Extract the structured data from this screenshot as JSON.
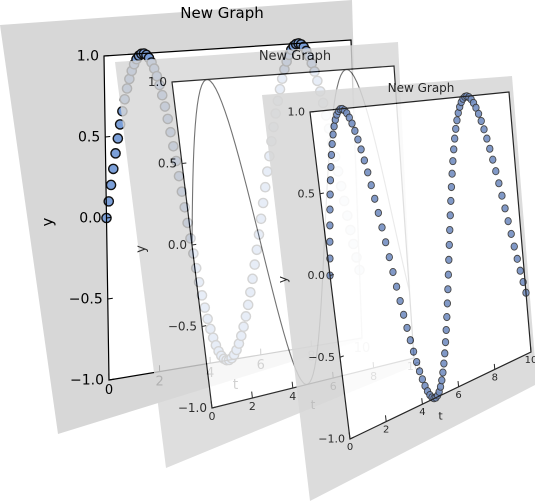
{
  "chart_data": [
    {
      "type": "scatter",
      "title": "New Graph",
      "xlabel": "t",
      "ylabel": "y",
      "function": "sin",
      "x_range": [
        0,
        10
      ],
      "ylim": [
        -1.0,
        1.0
      ],
      "xticks": [
        "0",
        "2",
        "4",
        "6",
        "8",
        "10"
      ],
      "yticks": [
        "−1.0",
        "−0.5",
        "0.0",
        "0.5",
        "1.0"
      ],
      "marker_color": "#7b9fd8",
      "num_points": 100
    },
    {
      "type": "line",
      "title": "New Graph",
      "xlabel": "t",
      "ylabel": "y",
      "function": "sin",
      "x_range": [
        0,
        10
      ],
      "ylim": [
        -1.0,
        1.0
      ],
      "xticks": [
        "0",
        "2",
        "4",
        "6",
        "8",
        "10"
      ],
      "yticks": [
        "−1.0",
        "−0.5",
        "0.0",
        "0.5",
        "1.0"
      ],
      "line_color": "#555555",
      "num_points": 100
    },
    {
      "type": "scatter",
      "title": "New Graph",
      "xlabel": "t",
      "ylabel": "y",
      "function": "sin",
      "x_range": [
        0,
        10
      ],
      "ylim": [
        -1.0,
        1.0
      ],
      "xticks": [
        "0",
        "2",
        "4",
        "6",
        "8",
        "10"
      ],
      "yticks": [
        "−1.0",
        "−0.5",
        "0.0",
        "0.5",
        "1.0"
      ],
      "marker_color": "#5d7cb8",
      "num_points": 100
    }
  ]
}
